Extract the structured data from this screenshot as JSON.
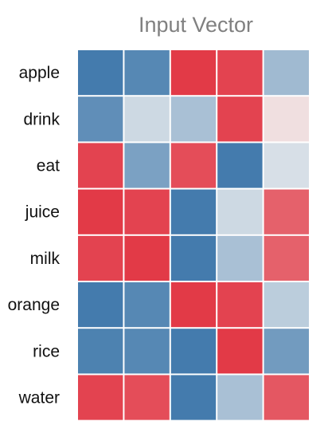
{
  "chart_data": {
    "type": "heatmap",
    "title": "Input Vector",
    "rows": [
      "apple",
      "drink",
      "eat",
      "juice",
      "milk",
      "orange",
      "rice",
      "water"
    ],
    "columns": [
      "",
      "",
      "",
      "",
      ""
    ],
    "values": [
      [
        -0.95,
        -0.85,
        0.95,
        0.9,
        -0.45
      ],
      [
        -0.8,
        -0.2,
        -0.4,
        0.9,
        0.1
      ],
      [
        0.9,
        -0.65,
        0.85,
        -0.95,
        -0.15
      ],
      [
        0.95,
        0.9,
        -0.95,
        -0.2,
        0.75
      ],
      [
        0.9,
        0.95,
        -0.95,
        -0.4,
        0.75
      ],
      [
        -0.95,
        -0.85,
        0.95,
        0.9,
        -0.3
      ],
      [
        -0.9,
        -0.85,
        -0.95,
        0.95,
        -0.7
      ],
      [
        0.9,
        0.85,
        -0.95,
        -0.4,
        0.8
      ]
    ],
    "value_range": [
      -1,
      1
    ],
    "colors": {
      "negative": "#3b75a9",
      "neutral": "#f2f2f2",
      "positive": "#e1303e"
    },
    "grid": false,
    "legend": "none"
  }
}
